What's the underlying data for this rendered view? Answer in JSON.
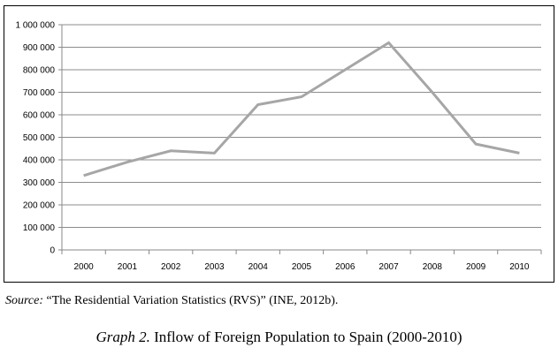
{
  "chart_data": {
    "type": "line",
    "categories": [
      "2000",
      "2001",
      "2002",
      "2003",
      "2004",
      "2005",
      "2006",
      "2007",
      "2008",
      "2009",
      "2010"
    ],
    "values": [
      330000,
      390000,
      440000,
      430000,
      645000,
      680000,
      800000,
      920000,
      700000,
      470000,
      430000
    ],
    "ylim": [
      0,
      1000000
    ],
    "yticks": [
      0,
      100000,
      200000,
      300000,
      400000,
      500000,
      600000,
      700000,
      800000,
      900000,
      1000000
    ],
    "ytick_labels": [
      "0",
      "100 000",
      "200 000",
      "300 000",
      "400 000",
      "500 000",
      "600 000",
      "700 000",
      "800 000",
      "900 000",
      "1 000 000"
    ],
    "grid": true,
    "line_color": "#a6a6a6",
    "title": "",
    "xlabel": "",
    "ylabel": ""
  },
  "source": {
    "label": "Source:",
    "text": " “The Residential Variation Statistics (RVS)” (INE, 2012b)."
  },
  "caption": {
    "label": "Graph 2.",
    "text": " Inflow of Foreign Population to Spain (2000-2010)"
  }
}
